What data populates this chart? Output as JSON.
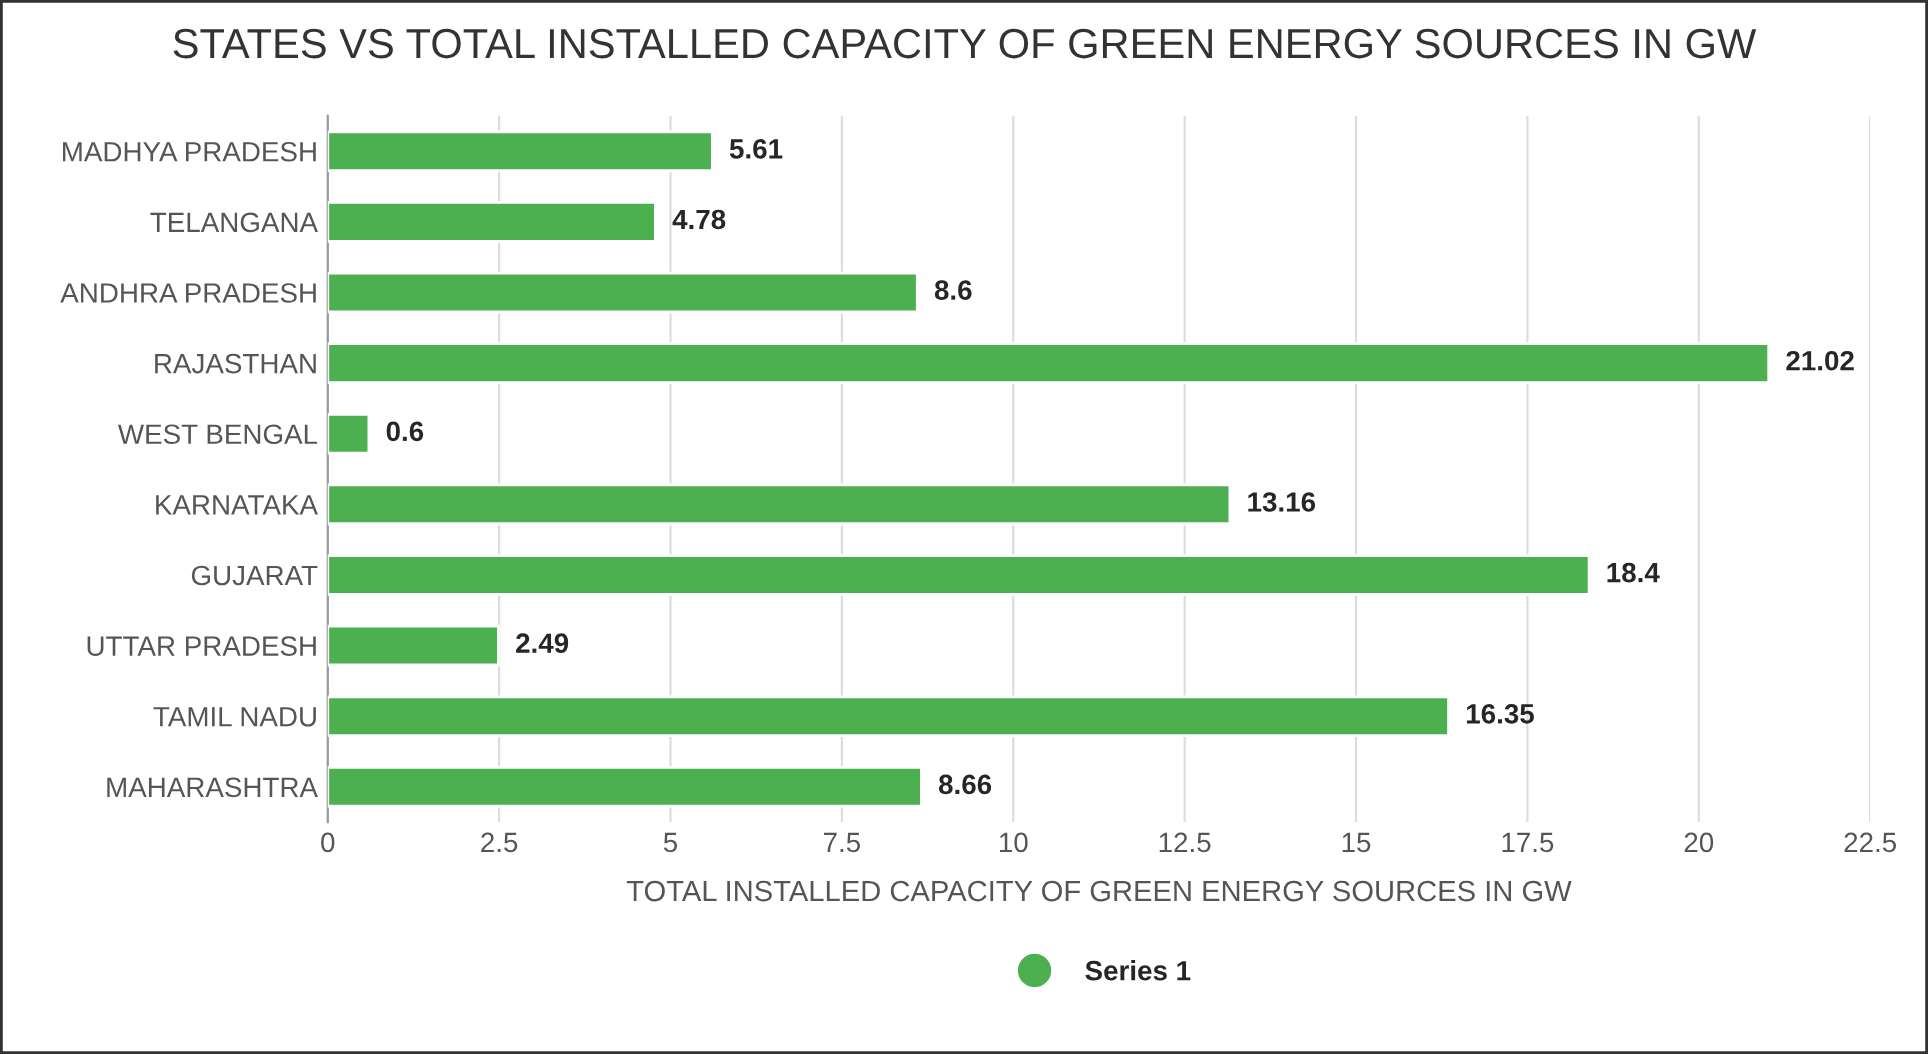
{
  "chart_data": {
    "type": "bar",
    "orientation": "horizontal",
    "title": "STATES VS TOTAL INSTALLED CAPACITY OF GREEN ENERGY SOURCES IN GW",
    "xlabel": "TOTAL INSTALLED CAPACITY OF GREEN ENERGY SOURCES IN GW",
    "categories": [
      "MADHYA PRADESH",
      "TELANGANA",
      "ANDHRA PRADESH",
      "RAJASTHAN",
      "WEST BENGAL",
      "KARNATAKA",
      "GUJARAT",
      "UTTAR PRADESH",
      "TAMIL NADU",
      "MAHARASHTRA"
    ],
    "series": [
      {
        "name": "Series 1",
        "color": "#4caf50",
        "values": [
          5.61,
          4.78,
          8.6,
          21.02,
          0.6,
          13.16,
          18.4,
          2.49,
          16.35,
          8.66
        ]
      }
    ],
    "xlim": [
      0,
      22.5
    ],
    "xticks": [
      0,
      2.5,
      5,
      7.5,
      10,
      12.5,
      15,
      17.5,
      20,
      22.5
    ],
    "grid": "x",
    "legend": "bottom",
    "data_labels": true
  }
}
